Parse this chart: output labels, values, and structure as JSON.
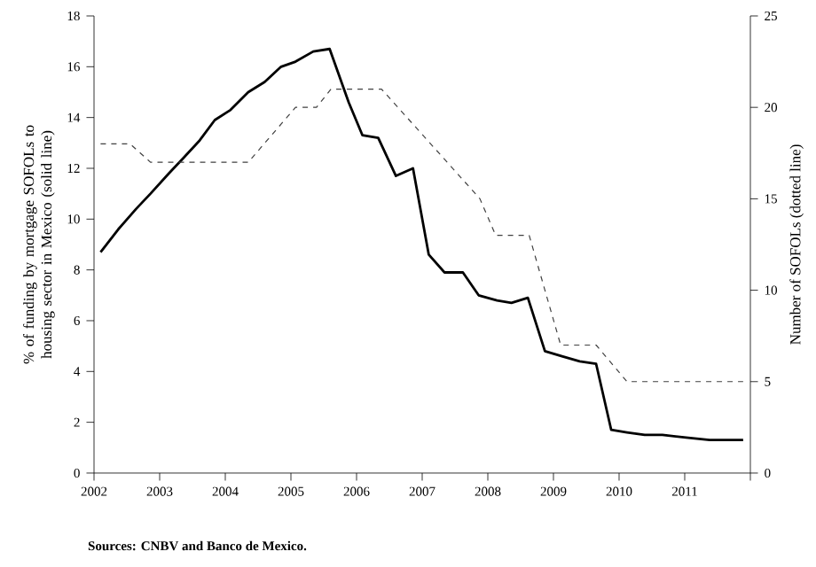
{
  "chart_data": {
    "type": "line",
    "ylabel": "% of funding by mortgage SOFOLs to housing sector in Mexico (solid line)",
    "y2label": "Number of SOFOLs (dotted line)",
    "annotations": [
      "Sources: CNBV and Banco de Mexico."
    ],
    "xlim": [
      2002,
      2012
    ],
    "xticks": [
      2002,
      2003,
      2004,
      2005,
      2006,
      2007,
      2008,
      2009,
      2010,
      2011,
      {
        "value": 2012,
        "label": null
      }
    ],
    "ylim": [
      0,
      18
    ],
    "yticks": [
      0,
      2,
      4,
      6,
      8,
      10,
      12,
      14,
      16,
      18
    ],
    "y2lim": [
      0,
      25
    ],
    "y2ticks": [
      0,
      5,
      10,
      15,
      20,
      25
    ],
    "grid": false,
    "marker": "none",
    "series": [
      {
        "color": "#000000",
        "line_style": "solid",
        "x": [
          2002.1,
          2002.37,
          2002.64,
          2002.86,
          2003.14,
          2003.36,
          2003.61,
          2003.84,
          2004.08,
          2004.35,
          2004.6,
          2004.85,
          2005.07,
          2005.34,
          2005.59,
          2005.88,
          2006.09,
          2006.33,
          2006.6,
          2006.86,
          2007.1,
          2007.34,
          2007.62,
          2007.86,
          2008.14,
          2008.36,
          2008.61,
          2008.87,
          2009.13,
          2009.4,
          2009.65,
          2009.88,
          2010.12,
          2010.39,
          2010.66,
          2011.02,
          2011.38,
          2011.89
        ],
        "values": [
          8.7,
          9.6,
          10.4,
          11.0,
          11.8,
          12.4,
          13.1,
          13.9,
          14.3,
          15.0,
          15.4,
          16.0,
          16.2,
          16.6,
          16.7,
          14.6,
          13.3,
          13.2,
          11.7,
          12.0,
          8.6,
          7.9,
          7.9,
          7.0,
          6.8,
          6.7,
          6.9,
          4.8,
          4.6,
          4.4,
          4.3,
          1.7,
          1.6,
          1.5,
          1.5,
          1.4,
          1.3,
          1.3
        ]
      },
      {
        "color": "#404040",
        "line_style": "dashed",
        "axis": "y2",
        "x": [
          2002.1,
          2002.55,
          2002.86,
          2004.35,
          2005.07,
          2005.39,
          2005.61,
          2006.38,
          2007.88,
          2008.12,
          2008.63,
          2009.11,
          2009.65,
          2010.12,
          2011.89
        ],
        "values": [
          18,
          18,
          17,
          17,
          20,
          20,
          21,
          21,
          15,
          13,
          13,
          7,
          7,
          5,
          5
        ]
      }
    ]
  }
}
